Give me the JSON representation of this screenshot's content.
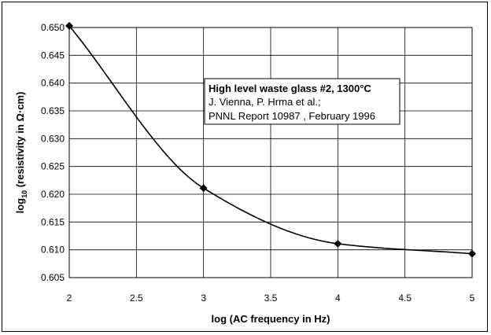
{
  "chart_data": {
    "type": "line",
    "title": "",
    "xlabel": "log (AC frequency in Hz)",
    "ylabel_parts": [
      "log",
      "10",
      " (resistivity in Ω·cm)"
    ],
    "xlim": [
      2,
      5
    ],
    "ylim": [
      0.605,
      0.65
    ],
    "xticks": [
      2,
      2.5,
      3,
      3.5,
      4,
      4.5,
      5
    ],
    "yticks": [
      0.605,
      0.61,
      0.615,
      0.62,
      0.625,
      0.63,
      0.635,
      0.64,
      0.645,
      0.65
    ],
    "grid": true,
    "series": [
      {
        "x": [
          2,
          3,
          4,
          5
        ],
        "y": [
          0.6503,
          0.6211,
          0.6111,
          0.6093
        ],
        "color": "#000000",
        "marker": "diamond",
        "smooth": true
      }
    ],
    "annotation": {
      "lines": [
        "High level waste glass #2, 1300°C",
        "J. Vienna, P. Hrma et al.;",
        "PNNL Report 10987 , February 1996"
      ]
    }
  }
}
